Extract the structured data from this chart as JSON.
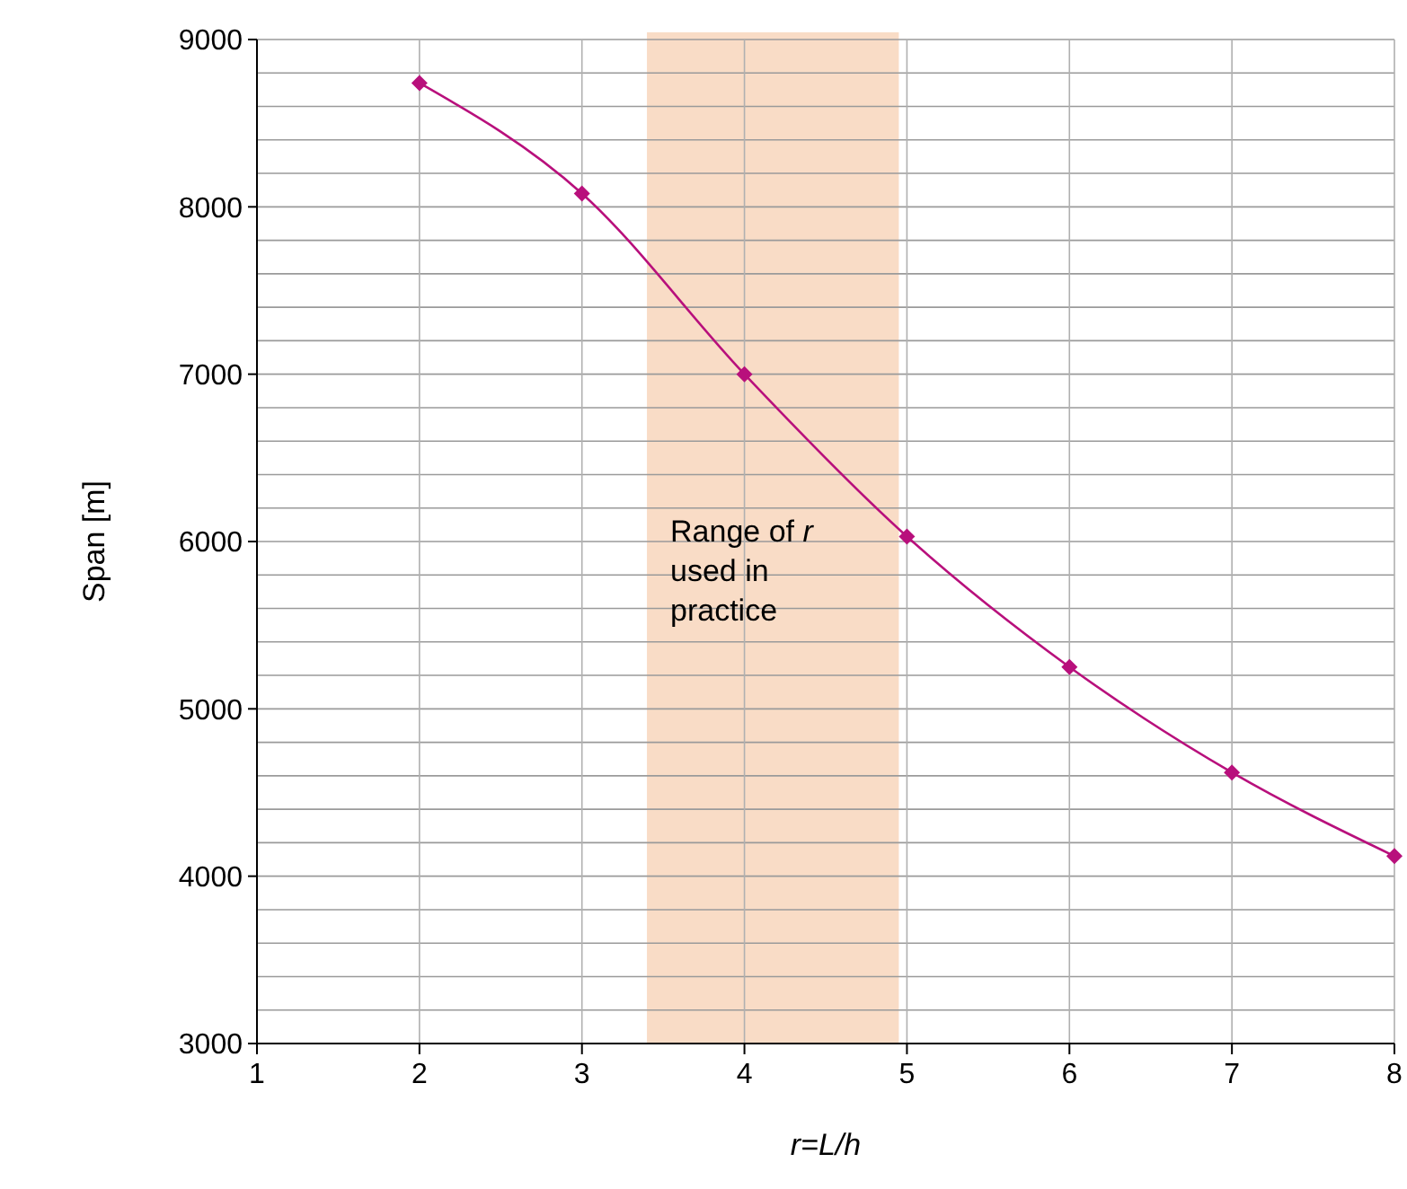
{
  "chart_data": {
    "type": "line",
    "xlabel": "r=L/h",
    "ylabel": "Span [m]",
    "x": [
      2,
      3,
      4,
      5,
      6,
      7,
      8
    ],
    "series": [
      {
        "color": "#b8107c",
        "values": [
          8740,
          8080,
          7000,
          6030,
          5250,
          4620,
          4120
        ]
      }
    ],
    "xlim": [
      1,
      8
    ],
    "xticks": [
      1,
      2,
      3,
      4,
      5,
      6,
      7,
      8
    ],
    "ylim": [
      3000,
      9000
    ],
    "yticks": [
      3000,
      {
        "value": 3200,
        "label": null
      },
      {
        "value": 3400,
        "label": null
      },
      {
        "value": 3600,
        "label": null
      },
      {
        "value": 3800,
        "label": null
      },
      4000,
      {
        "value": 4200,
        "label": null
      },
      {
        "value": 4400,
        "label": null
      },
      {
        "value": 4600,
        "label": null
      },
      {
        "value": 4800,
        "label": null
      },
      5000,
      {
        "value": 5200,
        "label": null
      },
      {
        "value": 5400,
        "label": null
      },
      {
        "value": 5600,
        "label": null
      },
      {
        "value": 5800,
        "label": null
      },
      6000,
      {
        "value": 6200,
        "label": null
      },
      {
        "value": 6400,
        "label": null
      },
      {
        "value": 6600,
        "label": null
      },
      {
        "value": 6800,
        "label": null
      },
      7000,
      {
        "value": 7200,
        "label": null
      },
      {
        "value": 7400,
        "label": null
      },
      {
        "value": 7600,
        "label": null
      },
      {
        "value": 7800,
        "label": null
      },
      8000,
      {
        "value": 8200,
        "label": null
      },
      {
        "value": 8400,
        "label": null
      },
      {
        "value": 8600,
        "label": null
      },
      {
        "value": 8800,
        "label": null
      },
      9000
    ],
    "bands": [
      {
        "axis": "x",
        "from": 3.4,
        "to": 4.95,
        "label": "Range of r used in practice",
        "color": "#f9dcc6"
      }
    ],
    "grid": true,
    "marker": "diamond",
    "line_style": "solid"
  }
}
